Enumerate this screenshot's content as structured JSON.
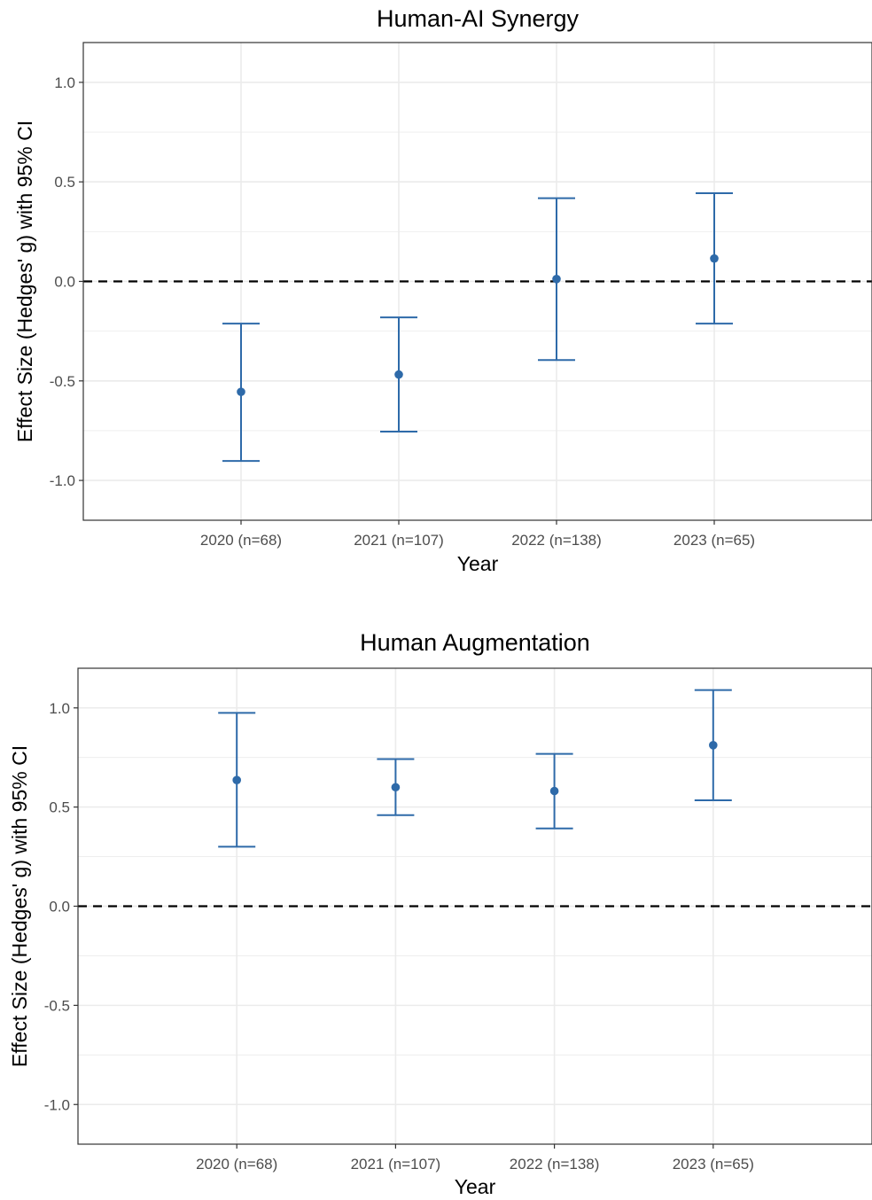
{
  "chart_data": [
    {
      "type": "scatter",
      "title": "Human-AI Synergy",
      "xlabel": "Year",
      "ylabel": "Effect Size (Hedges' g) with 95% CI",
      "categories": [
        "2020 (n=68)",
        "2021 (n=107)",
        "2022 (n=138)",
        "2023 (n=65)"
      ],
      "values": [
        -0.555,
        -0.468,
        0.012,
        0.115
      ],
      "ci_lower": [
        -0.902,
        -0.755,
        -0.395,
        -0.212
      ],
      "ci_upper": [
        -0.212,
        -0.181,
        0.418,
        0.443
      ],
      "ylim": [
        -1.2,
        1.2
      ],
      "yticks": [
        "1.0",
        "0.5",
        "0.0",
        "-0.5",
        "-1.0"
      ],
      "yticks_values": [
        1.0,
        0.5,
        0.0,
        -0.5,
        -1.0
      ],
      "reference_line": 0,
      "grid": true,
      "color": "#2e6aa9"
    },
    {
      "type": "scatter",
      "title": "Human Augmentation",
      "xlabel": "Year",
      "ylabel": "Effect Size (Hedges' g) with 95% CI",
      "categories": [
        "2020 (n=68)",
        "2021 (n=107)",
        "2022 (n=138)",
        "2023 (n=65)"
      ],
      "values": [
        0.636,
        0.6,
        0.581,
        0.812
      ],
      "ci_lower": [
        0.3,
        0.459,
        0.392,
        0.534
      ],
      "ci_upper": [
        0.975,
        0.742,
        0.768,
        1.09
      ],
      "ylim": [
        -1.2,
        1.2
      ],
      "yticks": [
        "1.0",
        "0.5",
        "0.0",
        "-0.5",
        "-1.0"
      ],
      "yticks_values": [
        1.0,
        0.5,
        0.0,
        -0.5,
        -1.0
      ],
      "reference_line": 0,
      "grid": true,
      "color": "#2e6aa9"
    }
  ]
}
